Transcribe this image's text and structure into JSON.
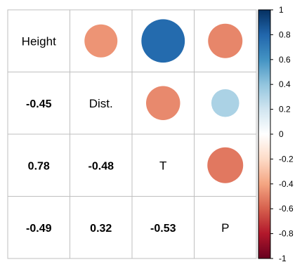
{
  "chart_data": {
    "type": "correlation-matrix",
    "variables": [
      "Height",
      "Dist.",
      "T",
      "P"
    ],
    "matrix": [
      [
        1,
        -0.45,
        0.78,
        -0.49
      ],
      [
        -0.45,
        1,
        -0.48,
        0.32
      ],
      [
        0.78,
        -0.48,
        1,
        -0.53
      ],
      [
        -0.49,
        0.32,
        -0.53,
        1
      ]
    ],
    "lower_labels": [
      {
        "row": 1,
        "col": 0,
        "text": "-0.45"
      },
      {
        "row": 2,
        "col": 0,
        "text": "0.78"
      },
      {
        "row": 2,
        "col": 1,
        "text": "-0.48"
      },
      {
        "row": 3,
        "col": 0,
        "text": "-0.49"
      },
      {
        "row": 3,
        "col": 1,
        "text": "0.32"
      },
      {
        "row": 3,
        "col": 2,
        "text": "-0.53"
      }
    ],
    "upper_shape": "circle",
    "colorbar": {
      "range": [
        -1,
        1
      ],
      "ticks": [
        "1",
        "0.8",
        "0.6",
        "0.4",
        "0.2",
        "0",
        "-0.2",
        "-0.4",
        "-0.6",
        "-0.8",
        "-1"
      ],
      "colors": {
        "neg_strong": "#67001f",
        "neg_mid": "#d6604d",
        "neg_light": "#f4a582",
        "zero": "#ffffff",
        "pos_light": "#92c5de",
        "pos_mid": "#4393c3",
        "pos_strong": "#053061"
      }
    }
  }
}
